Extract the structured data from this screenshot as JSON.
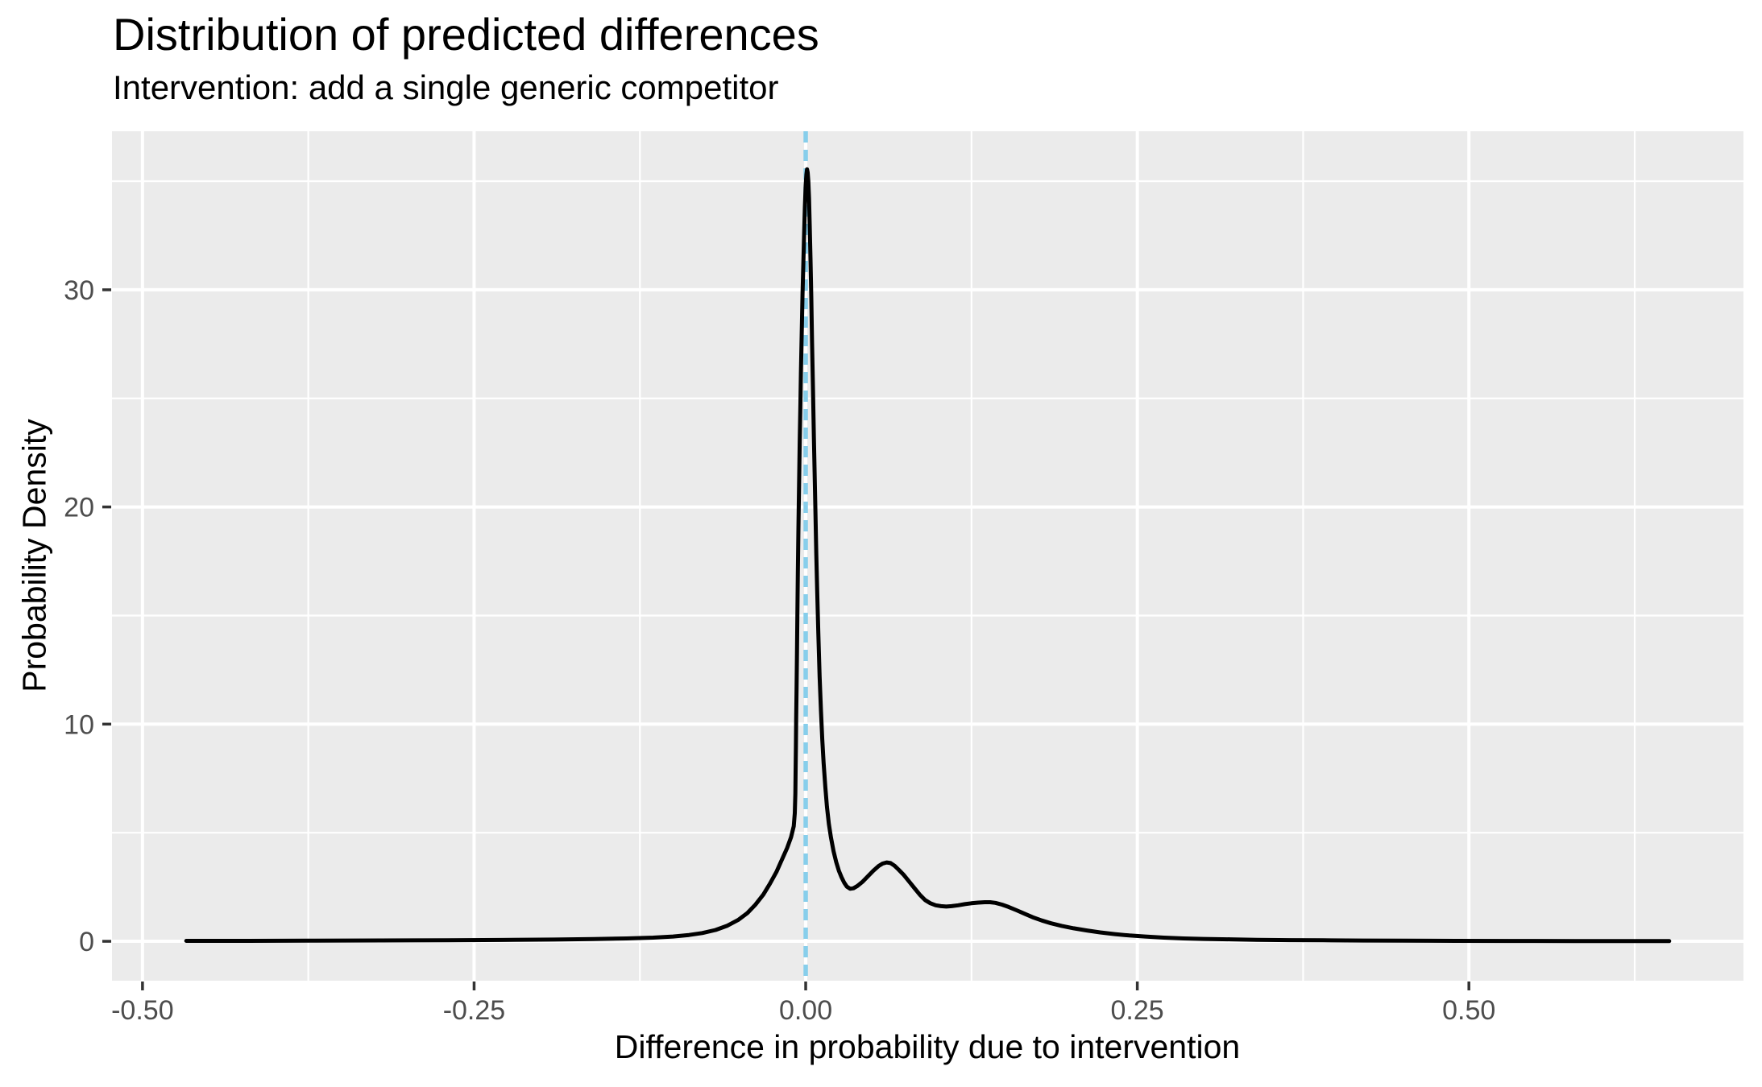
{
  "chart_data": {
    "type": "line",
    "subtype": "density",
    "title": "Distribution of predicted differences",
    "subtitle": "Intervention: add a single generic competitor",
    "xlabel": "Difference in probability due to intervention",
    "ylabel": "Probability Density",
    "xlim": [
      -0.523,
      0.707
    ],
    "ylim": [
      -1.815,
      37.3
    ],
    "x_ticks": [
      {
        "value": -0.5,
        "label": "-0.50"
      },
      {
        "value": -0.25,
        "label": "-0.25"
      },
      {
        "value": 0.0,
        "label": "0.00"
      },
      {
        "value": 0.25,
        "label": "0.25"
      },
      {
        "value": 0.5,
        "label": "0.50"
      }
    ],
    "y_ticks": [
      {
        "value": 0,
        "label": "0"
      },
      {
        "value": 10,
        "label": "10"
      },
      {
        "value": 20,
        "label": "20"
      },
      {
        "value": 30,
        "label": "30"
      }
    ],
    "x_minor_gridlines": [
      -0.375,
      -0.125,
      0.125,
      0.375,
      0.625
    ],
    "y_minor_gridlines": [
      5,
      15,
      25,
      35
    ],
    "grid": "major+minor",
    "legend_position": "none",
    "colors": {
      "panel_background": "#EBEBEB",
      "gridline": "#FFFFFF",
      "tick_mark": "#333333",
      "tick_label": "#4D4D4D",
      "curve": "#000000",
      "reference_line": "#87CEEB"
    },
    "reference_line": {
      "x": 0.0,
      "style": "dashed",
      "orientation": "vertical",
      "color": "#87CEEB"
    },
    "series": [
      {
        "name": "density of predicted differences",
        "color": "#000000",
        "peak": {
          "x": 0.001,
          "y": 35.55
        },
        "points": [
          [
            -0.467,
            0.02
          ],
          [
            -0.42,
            0.02
          ],
          [
            -0.37,
            0.03
          ],
          [
            -0.32,
            0.04
          ],
          [
            -0.27,
            0.05
          ],
          [
            -0.23,
            0.06
          ],
          [
            -0.19,
            0.08
          ],
          [
            -0.16,
            0.1
          ],
          [
            -0.135,
            0.13
          ],
          [
            -0.115,
            0.17
          ],
          [
            -0.1,
            0.22
          ],
          [
            -0.088,
            0.29
          ],
          [
            -0.078,
            0.38
          ],
          [
            -0.068,
            0.52
          ],
          [
            -0.059,
            0.72
          ],
          [
            -0.051,
            0.98
          ],
          [
            -0.044,
            1.3
          ],
          [
            -0.038,
            1.68
          ],
          [
            -0.032,
            2.15
          ],
          [
            -0.027,
            2.65
          ],
          [
            -0.022,
            3.2
          ],
          [
            -0.018,
            3.75
          ],
          [
            -0.014,
            4.3
          ],
          [
            -0.011,
            4.8
          ],
          [
            -0.009,
            5.3
          ],
          [
            -0.0082,
            5.9
          ],
          [
            -0.0078,
            6.8
          ],
          [
            -0.0076,
            7.8
          ],
          [
            -0.0074,
            9.0
          ],
          [
            -0.0072,
            10.2
          ],
          [
            -0.0069,
            11.6
          ],
          [
            -0.0066,
            13.2
          ],
          [
            -0.0063,
            15.0
          ],
          [
            -0.0059,
            17.0
          ],
          [
            -0.0055,
            19.0
          ],
          [
            -0.005,
            21.0
          ],
          [
            -0.0045,
            23.0
          ],
          [
            -0.004,
            24.8
          ],
          [
            -0.0036,
            26.2
          ],
          [
            -0.003,
            28.0
          ],
          [
            -0.0024,
            29.8
          ],
          [
            -0.0018,
            31.2
          ],
          [
            -0.0012,
            32.6
          ],
          [
            -0.0006,
            33.8
          ],
          [
            0.0,
            34.8
          ],
          [
            0.0005,
            35.3
          ],
          [
            0.001,
            35.55
          ],
          [
            0.0015,
            35.4
          ],
          [
            0.002,
            35.0
          ],
          [
            0.0025,
            34.2
          ],
          [
            0.003,
            33.0
          ],
          [
            0.0036,
            31.4
          ],
          [
            0.0042,
            29.6
          ],
          [
            0.0048,
            27.6
          ],
          [
            0.0055,
            25.4
          ],
          [
            0.0062,
            23.2
          ],
          [
            0.0067,
            21.6
          ],
          [
            0.0073,
            19.8
          ],
          [
            0.008,
            17.8
          ],
          [
            0.0087,
            16.0
          ],
          [
            0.0095,
            14.2
          ],
          [
            0.0105,
            12.2
          ],
          [
            0.0115,
            10.6
          ],
          [
            0.0125,
            9.3
          ],
          [
            0.0135,
            8.2
          ],
          [
            0.0148,
            7.1
          ],
          [
            0.016,
            6.2
          ],
          [
            0.0175,
            5.4
          ],
          [
            0.019,
            4.8
          ],
          [
            0.021,
            4.15
          ],
          [
            0.023,
            3.65
          ],
          [
            0.025,
            3.25
          ],
          [
            0.027,
            2.95
          ],
          [
            0.029,
            2.7
          ],
          [
            0.031,
            2.52
          ],
          [
            0.0335,
            2.42
          ],
          [
            0.036,
            2.44
          ],
          [
            0.039,
            2.55
          ],
          [
            0.043,
            2.75
          ],
          [
            0.047,
            3.0
          ],
          [
            0.051,
            3.25
          ],
          [
            0.055,
            3.47
          ],
          [
            0.058,
            3.58
          ],
          [
            0.061,
            3.63
          ],
          [
            0.064,
            3.6
          ],
          [
            0.067,
            3.48
          ],
          [
            0.07,
            3.3
          ],
          [
            0.074,
            3.05
          ],
          [
            0.078,
            2.75
          ],
          [
            0.082,
            2.45
          ],
          [
            0.086,
            2.15
          ],
          [
            0.09,
            1.9
          ],
          [
            0.094,
            1.75
          ],
          [
            0.098,
            1.66
          ],
          [
            0.102,
            1.62
          ],
          [
            0.106,
            1.6
          ],
          [
            0.11,
            1.62
          ],
          [
            0.115,
            1.66
          ],
          [
            0.12,
            1.71
          ],
          [
            0.125,
            1.75
          ],
          [
            0.13,
            1.78
          ],
          [
            0.135,
            1.8
          ],
          [
            0.139,
            1.8
          ],
          [
            0.143,
            1.77
          ],
          [
            0.148,
            1.69
          ],
          [
            0.153,
            1.58
          ],
          [
            0.159,
            1.43
          ],
          [
            0.165,
            1.27
          ],
          [
            0.171,
            1.11
          ],
          [
            0.178,
            0.96
          ],
          [
            0.185,
            0.83
          ],
          [
            0.193,
            0.71
          ],
          [
            0.202,
            0.6
          ],
          [
            0.212,
            0.5
          ],
          [
            0.222,
            0.41
          ],
          [
            0.233,
            0.33
          ],
          [
            0.244,
            0.27
          ],
          [
            0.256,
            0.22
          ],
          [
            0.27,
            0.17
          ],
          [
            0.285,
            0.13
          ],
          [
            0.3,
            0.11
          ],
          [
            0.32,
            0.09
          ],
          [
            0.34,
            0.07
          ],
          [
            0.365,
            0.055
          ],
          [
            0.39,
            0.045
          ],
          [
            0.42,
            0.035
          ],
          [
            0.45,
            0.028
          ],
          [
            0.49,
            0.021
          ],
          [
            0.53,
            0.016
          ],
          [
            0.58,
            0.012
          ],
          [
            0.62,
            0.009
          ],
          [
            0.651,
            0.008
          ]
        ]
      }
    ]
  }
}
